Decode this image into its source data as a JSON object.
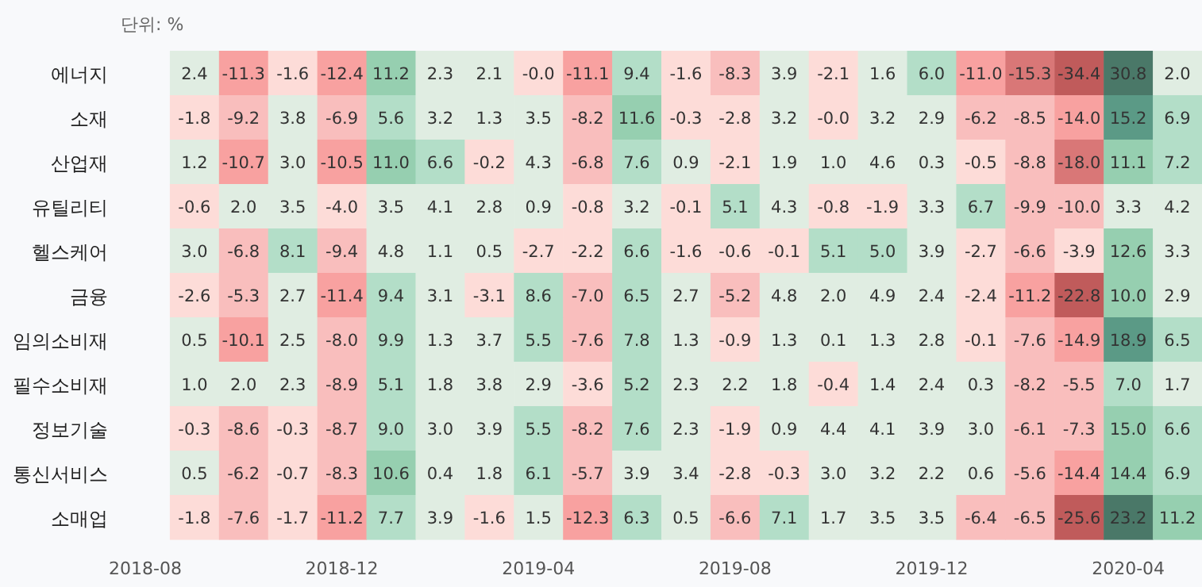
{
  "chart_data": {
    "type": "heatmap",
    "subtitle": "단위: %",
    "categories": [
      "2018-08",
      null,
      null,
      null,
      "2018-12",
      null,
      null,
      null,
      "2019-04",
      null,
      null,
      null,
      "2019-08",
      null,
      null,
      null,
      "2019-12",
      null,
      null,
      null,
      "2020-04",
      null
    ],
    "y_categories": [
      "에너지",
      "소재",
      "산업재",
      "유틸리티",
      "헬스케어",
      "금융",
      "임의소비재",
      "필수소비재",
      "정보기술",
      "통신서비스",
      "소매업"
    ],
    "cell_labels": [
      [
        null,
        "2.4",
        "-11.3",
        "-1.6",
        "-12.4",
        "11.2",
        "2.3",
        "2.1",
        "-0.0",
        "-11.1",
        "9.4",
        "-1.6",
        "-8.3",
        "3.9",
        "-2.1",
        "1.6",
        "6.0",
        "-11.0",
        "-15.3",
        "-34.4",
        "30.8",
        "2.0"
      ],
      [
        null,
        "-1.8",
        "-9.2",
        "3.8",
        "-6.9",
        "5.6",
        "3.2",
        "1.3",
        "3.5",
        "-8.2",
        "11.6",
        "-0.3",
        "-2.8",
        "3.2",
        "-0.0",
        "3.2",
        "2.9",
        "-6.2",
        "-8.5",
        "-14.0",
        "15.2",
        "6.9"
      ],
      [
        null,
        "1.2",
        "-10.7",
        "3.0",
        "-10.5",
        "11.0",
        "6.6",
        "-0.2",
        "4.3",
        "-6.8",
        "7.6",
        "0.9",
        "-2.1",
        "1.9",
        "1.0",
        "4.6",
        "0.3",
        "-0.5",
        "-8.8",
        "-18.0",
        "11.1",
        "7.2"
      ],
      [
        null,
        "-0.6",
        "2.0",
        "3.5",
        "-4.0",
        "3.5",
        "4.1",
        "2.8",
        "0.9",
        "-0.8",
        "3.2",
        "-0.1",
        "5.1",
        "4.3",
        "-0.8",
        "-1.9",
        "3.3",
        "6.7",
        "-9.9",
        "-10.0",
        "3.3",
        "4.2"
      ],
      [
        null,
        "3.0",
        "-6.8",
        "8.1",
        "-9.4",
        "4.8",
        "1.1",
        "0.5",
        "-2.7",
        "-2.2",
        "6.6",
        "-1.6",
        "-0.6",
        "-0.1",
        "5.1",
        "5.0",
        "3.9",
        "-2.7",
        "-6.6",
        "-3.9",
        "12.6",
        "3.3"
      ],
      [
        null,
        "-2.6",
        "-5.3",
        "2.7",
        "-11.4",
        "9.4",
        "3.1",
        "-3.1",
        "8.6",
        "-7.0",
        "6.5",
        "2.7",
        "-5.2",
        "4.8",
        "2.0",
        "4.9",
        "2.4",
        "-2.4",
        "-11.2",
        "-22.8",
        "10.0",
        "2.9"
      ],
      [
        null,
        "0.5",
        "-10.1",
        "2.5",
        "-8.0",
        "9.9",
        "1.3",
        "3.7",
        "5.5",
        "-7.6",
        "7.8",
        "1.3",
        "-0.9",
        "1.3",
        "0.1",
        "1.3",
        "2.8",
        "-0.1",
        "-7.6",
        "-14.9",
        "18.9",
        "6.5"
      ],
      [
        null,
        "1.0",
        "2.0",
        "2.3",
        "-8.9",
        "5.1",
        "1.8",
        "3.8",
        "2.9",
        "-3.6",
        "5.2",
        "2.3",
        "2.2",
        "1.8",
        "-0.4",
        "1.4",
        "2.4",
        "0.3",
        "-8.2",
        "-5.5",
        "7.0",
        "1.7"
      ],
      [
        null,
        "-0.3",
        "-8.6",
        "-0.3",
        "-8.7",
        "9.0",
        "3.0",
        "3.9",
        "5.5",
        "-8.2",
        "7.6",
        "2.3",
        "-1.9",
        "0.9",
        "4.4",
        "4.1",
        "3.9",
        "3.0",
        "-6.1",
        "-7.3",
        "15.0",
        "6.6"
      ],
      [
        null,
        "0.5",
        "-6.2",
        "-0.7",
        "-8.3",
        "10.6",
        "0.4",
        "1.8",
        "6.1",
        "-5.7",
        "3.9",
        "3.4",
        "-2.8",
        "-0.3",
        "3.0",
        "3.2",
        "2.2",
        "0.6",
        "-5.6",
        "-14.4",
        "14.4",
        "6.9"
      ],
      [
        null,
        "-1.8",
        "-7.6",
        "-1.7",
        "-11.2",
        "7.7",
        "3.9",
        "-1.6",
        "1.5",
        "-12.3",
        "6.3",
        "0.5",
        "-6.6",
        "7.1",
        "1.7",
        "3.5",
        "3.5",
        "-6.4",
        "-6.5",
        "-25.6",
        "23.2",
        "11.2"
      ]
    ],
    "cells": [
      [
        null,
        2.4,
        -11.3,
        -1.6,
        -12.4,
        11.2,
        2.3,
        2.1,
        -0.0,
        -11.1,
        9.4,
        -1.6,
        -8.3,
        3.9,
        -2.1,
        1.6,
        6.0,
        -11.0,
        -15.3,
        -34.4,
        30.8,
        2.0
      ],
      [
        null,
        -1.8,
        -9.2,
        3.8,
        -6.9,
        5.6,
        3.2,
        1.3,
        3.5,
        -8.2,
        11.6,
        -0.3,
        -2.8,
        3.2,
        -0.0,
        3.2,
        2.9,
        -6.2,
        -8.5,
        -14.0,
        15.2,
        6.9
      ],
      [
        null,
        1.2,
        -10.7,
        3.0,
        -10.5,
        11.0,
        6.6,
        -0.2,
        4.3,
        -6.8,
        7.6,
        0.9,
        -2.1,
        1.9,
        1.0,
        4.6,
        0.3,
        -0.5,
        -8.8,
        -18.0,
        11.1,
        7.2
      ],
      [
        null,
        -0.6,
        2.0,
        3.5,
        -4.0,
        3.5,
        4.1,
        2.8,
        0.9,
        -0.8,
        3.2,
        -0.1,
        5.1,
        4.3,
        -0.8,
        -1.9,
        3.3,
        6.7,
        -9.9,
        -10.0,
        3.3,
        4.2
      ],
      [
        null,
        3.0,
        -6.8,
        8.1,
        -9.4,
        4.8,
        1.1,
        0.5,
        -2.7,
        -2.2,
        6.6,
        -1.6,
        -0.6,
        -0.1,
        5.1,
        5.0,
        3.9,
        -2.7,
        -6.6,
        -3.9,
        12.6,
        3.3
      ],
      [
        null,
        -2.6,
        -5.3,
        2.7,
        -11.4,
        9.4,
        3.1,
        -3.1,
        8.6,
        -7.0,
        6.5,
        2.7,
        -5.2,
        4.8,
        2.0,
        4.9,
        2.4,
        -2.4,
        -11.2,
        -22.8,
        10.0,
        2.9
      ],
      [
        null,
        0.5,
        -10.1,
        2.5,
        -8.0,
        9.9,
        1.3,
        3.7,
        5.5,
        -7.6,
        7.8,
        1.3,
        -0.9,
        1.3,
        0.1,
        1.3,
        2.8,
        -0.1,
        -7.6,
        -14.9,
        18.9,
        6.5
      ],
      [
        null,
        1.0,
        2.0,
        2.3,
        -8.9,
        5.1,
        1.8,
        3.8,
        2.9,
        -3.6,
        5.2,
        2.3,
        2.2,
        1.8,
        -0.4,
        1.4,
        2.4,
        0.3,
        -8.2,
        -5.5,
        7.0,
        1.7
      ],
      [
        null,
        -0.3,
        -8.6,
        -0.3,
        -8.7,
        9.0,
        3.0,
        3.9,
        5.5,
        -8.2,
        7.6,
        2.3,
        -1.9,
        0.9,
        4.4,
        4.1,
        3.9,
        3.0,
        -6.1,
        -7.3,
        15.0,
        6.6
      ],
      [
        null,
        0.5,
        -6.2,
        -0.7,
        -8.3,
        10.6,
        0.4,
        1.8,
        6.1,
        -5.7,
        3.9,
        3.4,
        -2.8,
        -0.3,
        3.0,
        3.2,
        2.2,
        0.6,
        -5.6,
        -14.4,
        14.4,
        6.9
      ],
      [
        null,
        -1.8,
        -7.6,
        -1.7,
        -11.2,
        7.7,
        3.9,
        -1.6,
        1.5,
        -12.3,
        6.3,
        0.5,
        -6.6,
        7.1,
        1.7,
        3.5,
        3.5,
        -6.4,
        -6.5,
        -25.6,
        23.2,
        11.2
      ]
    ]
  }
}
